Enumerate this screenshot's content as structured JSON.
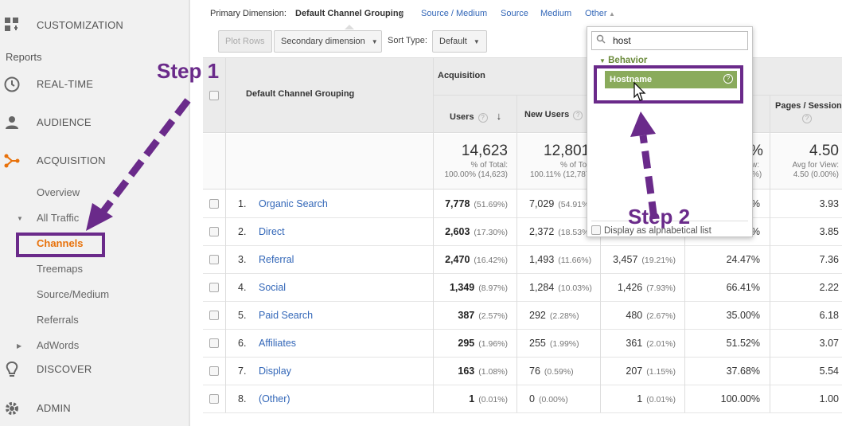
{
  "sidebar": {
    "customization": "CUSTOMIZATION",
    "reports": "Reports",
    "realtime": "REAL-TIME",
    "audience": "AUDIENCE",
    "acquisition": "ACQUISITION",
    "overview": "Overview",
    "all_traffic": "All Traffic",
    "channels": "Channels",
    "treemaps": "Treemaps",
    "source_medium": "Source/Medium",
    "referrals": "Referrals",
    "adwords": "AdWords",
    "discover": "DISCOVER",
    "admin": "ADMIN"
  },
  "dimensions": {
    "label": "Primary Dimension:",
    "active": "Default Channel Grouping",
    "links": [
      "Source / Medium",
      "Source",
      "Medium",
      "Other"
    ]
  },
  "toolbar": {
    "plot_rows": "Plot Rows",
    "secondary": "Secondary dimension",
    "sort_type_label": "Sort Type:",
    "sort_value": "Default"
  },
  "table": {
    "col_dimension": "Default Channel Grouping",
    "group_acquisition": "Acquisition",
    "col_users": "Users",
    "col_new_users": "New Users",
    "col_pages": "Pages / Session",
    "totals": {
      "users": "14,623",
      "users_sub1": "% of Total:",
      "users_sub2": "100.00% (14,623)",
      "new_users": "12,801",
      "new_users_sub1": "% of Total:",
      "new_users_sub2": "100.11% (12,787)",
      "bounce_partial": "%",
      "bounce_sub1": "w:",
      "bounce_sub2": "%)",
      "pages": "4.50",
      "pages_sub1": "Avg for View:",
      "pages_sub2": "4.50 (0.00%)"
    },
    "rows": [
      {
        "idx": "1.",
        "channel": "Organic Search",
        "users": "7,778",
        "users_pct": "(51.69%)",
        "new_users": "7,029",
        "new_users_pct": "(54.91%)",
        "sessions": "",
        "sessions_pct": "",
        "bounce": "7%",
        "pages": "3.93"
      },
      {
        "idx": "2.",
        "channel": "Direct",
        "users": "2,603",
        "users_pct": "(17.30%)",
        "new_users": "2,372",
        "new_users_pct": "(18.53%)",
        "sessions": "",
        "sessions_pct": "",
        "bounce": "0%",
        "pages": "3.85"
      },
      {
        "idx": "3.",
        "channel": "Referral",
        "users": "2,470",
        "users_pct": "(16.42%)",
        "new_users": "1,493",
        "new_users_pct": "(11.66%)",
        "sessions": "3,457",
        "sessions_pct": "(19.21%)",
        "bounce": "24.47%",
        "pages": "7.36"
      },
      {
        "idx": "4.",
        "channel": "Social",
        "users": "1,349",
        "users_pct": "(8.97%)",
        "new_users": "1,284",
        "new_users_pct": "(10.03%)",
        "sessions": "1,426",
        "sessions_pct": "(7.93%)",
        "bounce": "66.41%",
        "pages": "2.22"
      },
      {
        "idx": "5.",
        "channel": "Paid Search",
        "users": "387",
        "users_pct": "(2.57%)",
        "new_users": "292",
        "new_users_pct": "(2.28%)",
        "sessions": "480",
        "sessions_pct": "(2.67%)",
        "bounce": "35.00%",
        "pages": "6.18"
      },
      {
        "idx": "6.",
        "channel": "Affiliates",
        "users": "295",
        "users_pct": "(1.96%)",
        "new_users": "255",
        "new_users_pct": "(1.99%)",
        "sessions": "361",
        "sessions_pct": "(2.01%)",
        "bounce": "51.52%",
        "pages": "3.07"
      },
      {
        "idx": "7.",
        "channel": "Display",
        "users": "163",
        "users_pct": "(1.08%)",
        "new_users": "76",
        "new_users_pct": "(0.59%)",
        "sessions": "207",
        "sessions_pct": "(1.15%)",
        "bounce": "37.68%",
        "pages": "5.54"
      },
      {
        "idx": "8.",
        "channel": "(Other)",
        "users": "1",
        "users_pct": "(0.01%)",
        "new_users": "0",
        "new_users_pct": "(0.00%)",
        "sessions": "1",
        "sessions_pct": "(0.01%)",
        "bounce": "100.00%",
        "pages": "1.00"
      }
    ]
  },
  "dropdown": {
    "search_value": "host",
    "group": "Behavior",
    "item": "Hostname",
    "alpha": "Display as alphabetical list"
  },
  "annotations": {
    "step1": "Step 1",
    "step2": "Step 2",
    "color": "#6a2a8a"
  },
  "colors": {
    "accent_orange": "#e8710a",
    "link_blue": "#3367b8",
    "behavior_green": "#8aab5c"
  }
}
